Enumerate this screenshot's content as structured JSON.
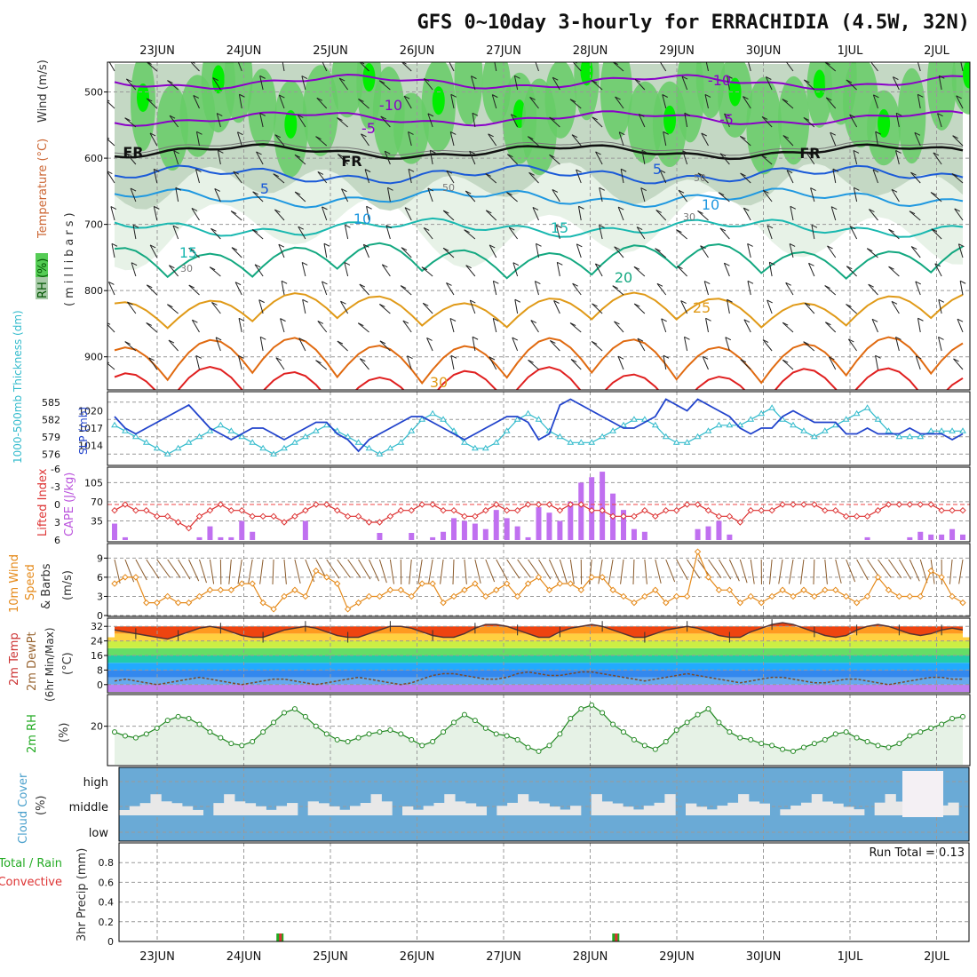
{
  "chart_data": {
    "title": "GFS 0~10day 3-hourly for ERRACHIDIA (4.5W, 32N)",
    "type": "line",
    "x": {
      "day_labels": [
        "23JUN",
        "24JUN",
        "25JUN",
        "26JUN",
        "27JUN",
        "28JUN",
        "29JUN",
        "30JUN",
        "1JUL",
        "2JUL"
      ]
    },
    "panels": [
      {
        "id": "upper_air",
        "labels": [
          "RH (%)",
          "Temperature (°C)",
          "Wind (m/s)"
        ],
        "label_colors": [
          "#00aa00",
          "#cc3333",
          "#333333"
        ],
        "ylabel": "(millibars)",
        "yticks": [
          500,
          600,
          700,
          800,
          900
        ],
        "ylim": [
          950,
          455
        ],
        "temperature_contour_labels": [
          "-10",
          "-5",
          "FR",
          "5",
          "10",
          "15",
          "20",
          "25",
          "30"
        ],
        "rh_contour_labels": [
          "30",
          "50"
        ],
        "temperature_levels_c": [
          -10,
          -5,
          0,
          5,
          10,
          15,
          20,
          25,
          30,
          35
        ],
        "temperature_level_colors": [
          "#8a00c8",
          "#8a00c8",
          "#111111",
          "#1a5ad8",
          "#1f98e0",
          "#19b8b0",
          "#13a880",
          "#e09a18",
          "#e06a10",
          "#e02020"
        ]
      },
      {
        "id": "slp_thickness",
        "labels": [
          "1000-500mb Thickness (dm)",
          "SLP (mb)"
        ],
        "label_colors": [
          "#33bbcc",
          "#2244cc"
        ],
        "thickness_ticks": [
          576,
          579,
          582,
          585
        ],
        "slp_ticks": [
          1014,
          1017,
          1020
        ],
        "thickness_dm": [
          581,
          580,
          579,
          578,
          577,
          576,
          577,
          578,
          579,
          580,
          581,
          580,
          579,
          578,
          577,
          576,
          577,
          578,
          579,
          580,
          581,
          580,
          579,
          578,
          577,
          576,
          577,
          578,
          580,
          582,
          583,
          582,
          580,
          578,
          577,
          577,
          578,
          580,
          582,
          583,
          582,
          580,
          579,
          578,
          578,
          578,
          579,
          580,
          581,
          582,
          582,
          581,
          579,
          578,
          578,
          579,
          580,
          581,
          581,
          581,
          582,
          583,
          584,
          582,
          581,
          580,
          579,
          580,
          581,
          582,
          583,
          584,
          582,
          580,
          579,
          579,
          579,
          580,
          580,
          580,
          580
        ],
        "slp_mb": [
          1019,
          1017,
          1016,
          1017,
          1018,
          1019,
          1020,
          1021,
          1019,
          1017,
          1016,
          1015,
          1016,
          1017,
          1017,
          1016,
          1015,
          1016,
          1017,
          1018,
          1018,
          1016,
          1015,
          1013,
          1015,
          1016,
          1017,
          1018,
          1019,
          1019,
          1018,
          1017,
          1016,
          1015,
          1016,
          1017,
          1018,
          1019,
          1019,
          1018,
          1015,
          1016,
          1021,
          1022,
          1021,
          1020,
          1019,
          1018,
          1017,
          1017,
          1018,
          1019,
          1022,
          1021,
          1020,
          1022,
          1021,
          1020,
          1019,
          1017,
          1016,
          1017,
          1017,
          1019,
          1020,
          1019,
          1018,
          1018,
          1018,
          1016,
          1016,
          1017,
          1016,
          1016,
          1016,
          1017,
          1016,
          1016,
          1016,
          1015,
          1016
        ]
      },
      {
        "id": "instability",
        "labels": [
          "Lifted Index",
          "CAPE (J/kg)"
        ],
        "label_colors": [
          "#dd3333",
          "#bb55dd"
        ],
        "li_ticks": [
          -6,
          -3,
          0,
          3,
          6
        ],
        "cape_ticks": [
          35,
          70,
          105
        ],
        "lifted_index": [
          1,
          0,
          1,
          1,
          2,
          2,
          3,
          4,
          2,
          1,
          0,
          1,
          1,
          2,
          2,
          2,
          3,
          2,
          1,
          0,
          0,
          1,
          2,
          2,
          3,
          3,
          2,
          1,
          1,
          0,
          0,
          1,
          1,
          2,
          2,
          1,
          0,
          1,
          1,
          0,
          0,
          0,
          1,
          0,
          0,
          1,
          1,
          2,
          2,
          2,
          1,
          2,
          1,
          1,
          0,
          0,
          1,
          2,
          2,
          3,
          1,
          1,
          1,
          0,
          0,
          0,
          0,
          1,
          1,
          2,
          2,
          2,
          1,
          0,
          0,
          0,
          0,
          0,
          1,
          1,
          1
        ],
        "cape_jkg": [
          30,
          5,
          0,
          0,
          0,
          0,
          0,
          0,
          5,
          25,
          5,
          5,
          35,
          15,
          0,
          0,
          0,
          0,
          35,
          0,
          0,
          0,
          0,
          0,
          0,
          13,
          0,
          0,
          13,
          0,
          5,
          15,
          40,
          35,
          30,
          20,
          55,
          40,
          25,
          5,
          60,
          50,
          35,
          70,
          105,
          115,
          125,
          85,
          55,
          20,
          15,
          0,
          0,
          0,
          0,
          20,
          25,
          35,
          10,
          0,
          0,
          0,
          0,
          0,
          0,
          0,
          0,
          0,
          0,
          0,
          0,
          5,
          0,
          0,
          0,
          5,
          15,
          10,
          10,
          20,
          10
        ]
      },
      {
        "id": "wind_10m",
        "labels": [
          "10m Wind",
          "Speed",
          "& Barbs"
        ],
        "label_colors": [
          "#e58a1a",
          "#e58a1a",
          "#333333"
        ],
        "ylabel": "(m/s)",
        "yticks": [
          0,
          3,
          6,
          9
        ],
        "speed_ms": [
          5,
          6,
          6,
          2,
          2,
          3,
          2,
          2,
          3,
          4,
          4,
          4,
          5,
          5,
          2,
          1,
          3,
          4,
          3,
          7,
          6,
          5,
          1,
          2,
          3,
          3,
          4,
          4,
          3,
          5,
          5,
          2,
          3,
          4,
          5,
          3,
          4,
          5,
          3,
          5,
          6,
          4,
          5,
          5,
          4,
          6,
          6,
          4,
          3,
          2,
          3,
          4,
          2,
          3,
          3,
          10,
          6,
          4,
          4,
          2,
          3,
          2,
          3,
          4,
          3,
          4,
          3,
          4,
          4,
          3,
          2,
          3,
          6,
          4,
          3,
          3,
          3,
          7,
          6,
          3,
          2
        ]
      },
      {
        "id": "temp_2m",
        "labels": [
          "2m Temp",
          "2m DewPt",
          "(6hr Min/Max)"
        ],
        "label_colors": [
          "#cc3333",
          "#996633",
          "#333333"
        ],
        "ylabel": "(°C)",
        "yticks": [
          0,
          8,
          16,
          24,
          32
        ],
        "temp_c": [
          30,
          29,
          28,
          27,
          26,
          25,
          27,
          29,
          31,
          32,
          31,
          29,
          27,
          26,
          26,
          28,
          30,
          31,
          32,
          31,
          29,
          27,
          26,
          26,
          28,
          30,
          32,
          32,
          31,
          29,
          27,
          26,
          26,
          28,
          31,
          33,
          33,
          32,
          30,
          28,
          26,
          26,
          29,
          31,
          32,
          33,
          32,
          30,
          28,
          26,
          26,
          28,
          30,
          31,
          32,
          31,
          29,
          27,
          26,
          26,
          29,
          31,
          33,
          34,
          33,
          31,
          29,
          27,
          26,
          27,
          30,
          32,
          33,
          32,
          30,
          28,
          27,
          28,
          30,
          31,
          30
        ],
        "dewpoint_c": [
          2,
          3,
          2,
          1,
          0,
          1,
          2,
          3,
          4,
          3,
          2,
          1,
          0,
          1,
          2,
          3,
          3,
          2,
          1,
          0,
          1,
          2,
          3,
          4,
          3,
          2,
          1,
          0,
          1,
          3,
          5,
          6,
          6,
          5,
          4,
          3,
          3,
          4,
          6,
          7,
          6,
          5,
          5,
          6,
          7,
          7,
          6,
          5,
          4,
          3,
          2,
          3,
          4,
          5,
          6,
          5,
          4,
          3,
          2,
          1,
          2,
          3,
          4,
          4,
          3,
          2,
          1,
          1,
          2,
          3,
          3,
          2,
          1,
          0,
          1,
          2,
          3,
          4,
          4,
          3,
          3
        ]
      },
      {
        "id": "rh_2m",
        "labels": [
          "2m RH"
        ],
        "label_colors": [
          "#22aa22"
        ],
        "ylabel": "(%)",
        "yticks": [
          20
        ],
        "rh_pct": [
          17,
          15,
          14,
          16,
          19,
          23,
          25,
          24,
          21,
          17,
          14,
          11,
          10,
          12,
          17,
          22,
          27,
          29,
          25,
          20,
          16,
          13,
          12,
          14,
          16,
          17,
          18,
          16,
          13,
          10,
          12,
          17,
          22,
          26,
          23,
          19,
          16,
          15,
          13,
          9,
          7,
          10,
          16,
          24,
          29,
          31,
          27,
          21,
          17,
          13,
          10,
          8,
          12,
          18,
          22,
          26,
          29,
          22,
          17,
          14,
          13,
          11,
          10,
          8,
          7,
          9,
          11,
          13,
          16,
          17,
          14,
          12,
          10,
          9,
          11,
          15,
          17,
          19,
          21,
          24,
          25
        ]
      },
      {
        "id": "cloud_cover",
        "labels": [
          "Cloud Cover",
          "(%)"
        ],
        "label_colors": [
          "#4aa0cc",
          "#333333"
        ],
        "yticks": [
          "high",
          "middle",
          "low"
        ]
      },
      {
        "id": "precip",
        "labels": [
          "Total / Rain",
          "Convective",
          "3hr Precip (mm)"
        ],
        "label_colors": [
          "#22aa22",
          "#dd3333",
          "#333333"
        ],
        "yticks": [
          0,
          0.2,
          0.4,
          0.6,
          0.8
        ],
        "annotation": "Run Total = 0.13",
        "total_mm": [
          0,
          0,
          0,
          0,
          0,
          0,
          0,
          0,
          0,
          0,
          0,
          0,
          0,
          0,
          0,
          0.07,
          0,
          0,
          0,
          0,
          0,
          0,
          0,
          0,
          0,
          0,
          0,
          0,
          0,
          0,
          0,
          0,
          0,
          0,
          0,
          0,
          0,
          0,
          0,
          0,
          0,
          0,
          0,
          0,
          0,
          0,
          0,
          0.06,
          0,
          0,
          0,
          0,
          0,
          0,
          0,
          0,
          0,
          0,
          0,
          0,
          0,
          0,
          0,
          0,
          0,
          0,
          0,
          0,
          0,
          0,
          0,
          0,
          0,
          0,
          0,
          0,
          0,
          0,
          0,
          0,
          0
        ]
      }
    ]
  }
}
